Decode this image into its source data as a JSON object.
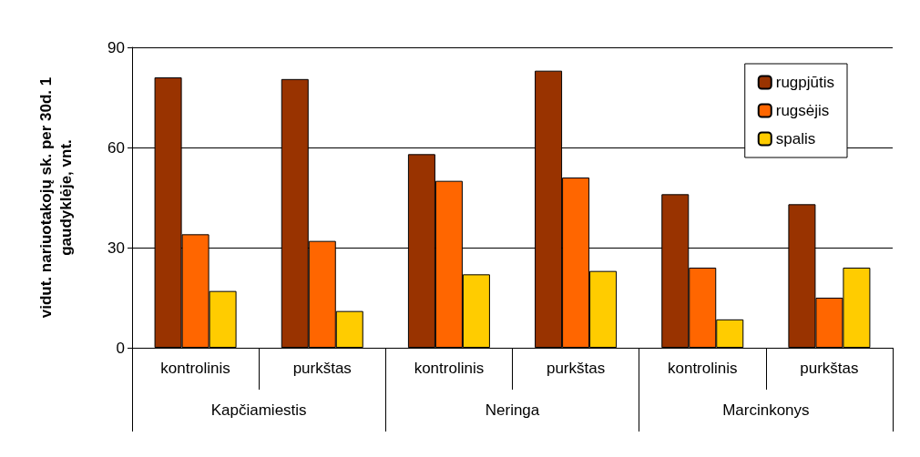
{
  "chart_data": {
    "type": "bar",
    "ylabel": "vidut. nariuotakojų sk. per 30d. 1\ngaudyklėje, vnt.",
    "categories": [
      "kontrolinis",
      "purkštas",
      "kontrolinis",
      "purkštas",
      "kontrolinis",
      "purkštas"
    ],
    "annotations": [
      "Kapčiamiestis",
      "Neringa",
      "Marcinkonys"
    ],
    "series": [
      {
        "name": "rugpjūtis",
        "color": "#993300",
        "values": [
          81,
          80.5,
          58,
          83,
          46,
          43
        ]
      },
      {
        "name": "rugsėjis",
        "color": "#ff6600",
        "values": [
          34,
          32,
          50,
          51,
          24,
          15
        ]
      },
      {
        "name": "spalis",
        "color": "#ffcc00",
        "values": [
          17,
          11,
          22,
          23,
          8.5,
          24
        ]
      }
    ],
    "ylim": [
      0,
      90
    ],
    "yticks": [
      0,
      30,
      60,
      90
    ],
    "grid": "y",
    "legend": "top right"
  }
}
